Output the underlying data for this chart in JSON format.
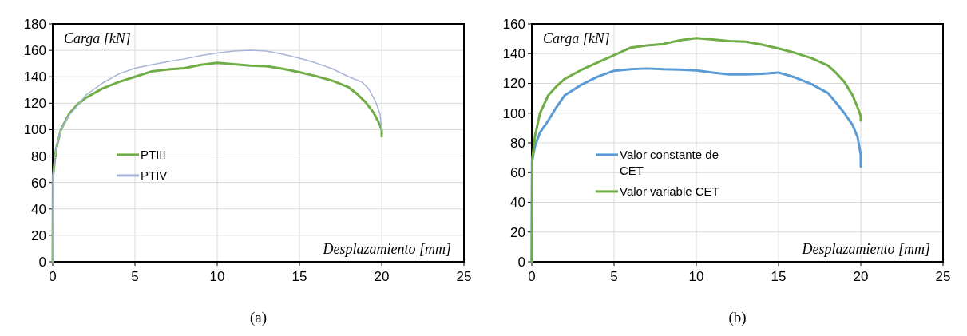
{
  "chart_data": [
    {
      "type": "line",
      "title": "(a)",
      "xlabel": "Desplazamiento [mm]",
      "ylabel": "Carga [kN]",
      "xlim": [
        0,
        25
      ],
      "xticks": [
        0,
        5,
        10,
        15,
        20,
        25
      ],
      "ylim": [
        0,
        180
      ],
      "yticks": [
        0,
        20,
        40,
        60,
        80,
        100,
        120,
        140,
        160,
        180
      ],
      "grid": true,
      "legend": "left",
      "series": [
        {
          "name": "PTIII",
          "color": "#70ad47",
          "x": [
            0,
            0.02,
            0.2,
            0.5,
            1,
            1.5,
            2,
            3,
            4,
            5,
            6,
            7,
            8,
            9,
            10,
            11,
            12,
            13,
            14,
            15,
            16,
            17,
            18,
            18.5,
            19,
            19.5,
            19.8,
            20,
            20
          ],
          "values": [
            0,
            65,
            85,
            100,
            112,
            119,
            124,
            131,
            136,
            140,
            144,
            145.5,
            146.5,
            149,
            150.5,
            149.5,
            148.5,
            148,
            146,
            143.5,
            140.5,
            137,
            132,
            127,
            121,
            113,
            106,
            100,
            95
          ]
        },
        {
          "name": "PTIV",
          "color": "#a9b4d6",
          "x": [
            0,
            0.02,
            0.2,
            0.5,
            1,
            1.5,
            2,
            3,
            4,
            5,
            6,
            7,
            8,
            9,
            10,
            11,
            12,
            13,
            14,
            15,
            16,
            17,
            18,
            18.8,
            19.2,
            19.6,
            19.9,
            20
          ],
          "values": [
            0,
            65,
            85,
            100,
            111,
            118,
            126,
            135,
            142,
            146.5,
            149,
            151.5,
            153.5,
            156,
            158,
            159.5,
            160,
            159.5,
            157,
            154,
            150.5,
            146,
            140,
            136,
            131,
            122,
            112,
            100
          ]
        }
      ]
    },
    {
      "type": "line",
      "title": "(b)",
      "xlabel": "Desplazamiento [mm]",
      "ylabel": "Carga [kN]",
      "xlim": [
        0,
        25
      ],
      "xticks": [
        0,
        5,
        10,
        15,
        20,
        25
      ],
      "ylim": [
        0,
        160
      ],
      "yticks": [
        0,
        20,
        40,
        60,
        80,
        100,
        120,
        140,
        160
      ],
      "grid": true,
      "legend": "left",
      "series": [
        {
          "name": "Valor constante de CET",
          "color": "#5b9bd5",
          "x": [
            0,
            0.02,
            0.2,
            0.5,
            1,
            1.5,
            2,
            3,
            4,
            5,
            6,
            7,
            8,
            9,
            10,
            11,
            12,
            13,
            14,
            15,
            16,
            17,
            18,
            18.5,
            19,
            19.5,
            19.8,
            20,
            20
          ],
          "values": [
            0,
            68,
            78,
            87,
            95,
            104,
            112,
            119,
            124.5,
            128.5,
            129.5,
            130,
            129.5,
            129.3,
            128.7,
            127.3,
            126,
            126,
            126.5,
            127.3,
            124,
            119.5,
            113.5,
            107,
            100,
            92,
            84,
            72,
            64
          ]
        },
        {
          "name": "Valor variable CET",
          "color": "#70ad47",
          "x": [
            0,
            0.02,
            0.2,
            0.5,
            1,
            1.5,
            2,
            3,
            4,
            5,
            6,
            7,
            8,
            9,
            10,
            11,
            12,
            13,
            14,
            15,
            16,
            17,
            18,
            18.5,
            19,
            19.5,
            19.8,
            20,
            20
          ],
          "values": [
            0,
            68,
            85,
            100,
            112,
            118,
            123,
            129,
            134,
            139,
            144,
            145.5,
            146.5,
            149,
            150.5,
            149.5,
            148.5,
            148,
            146,
            143.5,
            140.5,
            137,
            132,
            127,
            121,
            112,
            104,
            98,
            95
          ]
        }
      ]
    }
  ]
}
